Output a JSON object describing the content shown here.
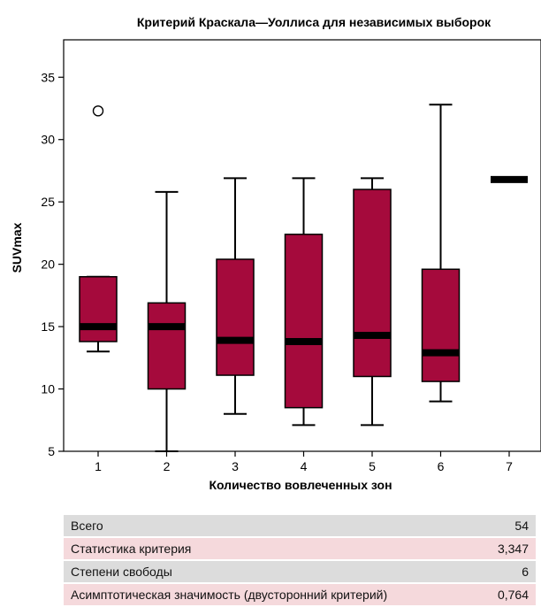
{
  "chart_data": {
    "type": "boxplot",
    "title": "Критерий Краскала—Уоллиса для независимых выборок",
    "xlabel": "Количество вовлеченных зон",
    "ylabel": "SUVmax",
    "ylim": [
      5,
      38
    ],
    "yticks": [
      "5",
      "10",
      "15",
      "20",
      "25",
      "30",
      "35"
    ],
    "categories": [
      "1",
      "2",
      "3",
      "4",
      "5",
      "6",
      "7"
    ],
    "box_color": "#a50a3c",
    "boxes": [
      {
        "category": "1",
        "min": 13,
        "q1": 13.8,
        "median": 15,
        "q3": 19,
        "max": 19,
        "outliers": [
          32.3
        ]
      },
      {
        "category": "2",
        "min": 5,
        "q1": 10,
        "median": 15,
        "q3": 16.9,
        "max": 25.8,
        "outliers": []
      },
      {
        "category": "3",
        "min": 8,
        "q1": 11.1,
        "median": 13.9,
        "q3": 20.4,
        "max": 26.9,
        "outliers": []
      },
      {
        "category": "4",
        "min": 7.1,
        "q1": 8.5,
        "median": 13.8,
        "q3": 22.4,
        "max": 26.9,
        "outliers": []
      },
      {
        "category": "5",
        "min": 7.1,
        "q1": 11,
        "median": 14.3,
        "q3": 26,
        "max": 26.9,
        "outliers": []
      },
      {
        "category": "6",
        "min": 9,
        "q1": 10.6,
        "median": 12.9,
        "q3": 19.6,
        "max": 32.8,
        "outliers": []
      },
      {
        "category": "7",
        "min": 26.8,
        "q1": 26.8,
        "median": 26.8,
        "q3": 26.8,
        "max": 26.8,
        "outliers": []
      }
    ]
  },
  "stats": [
    {
      "label": "Всего",
      "value": "54"
    },
    {
      "label": "Статистика критерия",
      "value": "3,347"
    },
    {
      "label": "Степени свободы",
      "value": "6"
    },
    {
      "label": "Асимптотическая значимость (двусторонний критерий)",
      "value": "0,764"
    }
  ]
}
